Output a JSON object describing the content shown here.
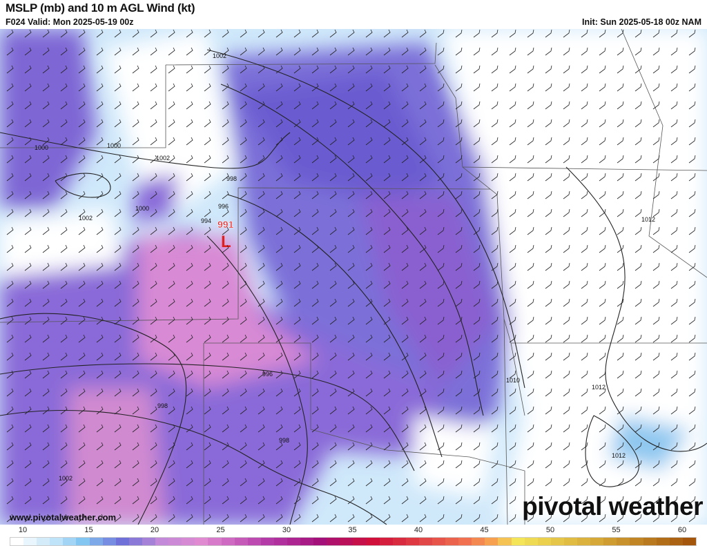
{
  "header": {
    "title": "MSLP (mb) and 10 m AGL Wind (kt)",
    "valid": "F024 Valid: Mon 2025-05-19 00z",
    "init": "Init: Sun 2025-05-18 00z NAM"
  },
  "map": {
    "low_center": {
      "pressure": "991",
      "symbol": "L",
      "color": "#e02020"
    },
    "isobar_labels": [
      "1002",
      "1000",
      "1002",
      "1000",
      "998",
      "996",
      "994",
      "1000",
      "1002",
      "1012",
      "996",
      "998",
      "998",
      "1010",
      "1012",
      "1012",
      "1002"
    ]
  },
  "footer": {
    "website": "www.pivotalweather.com",
    "logo": "pivotal weather"
  },
  "colorbar": {
    "unit": "kt",
    "labels": [
      "10",
      "15",
      "20",
      "25",
      "30",
      "35",
      "40",
      "45",
      "50",
      "55",
      "60"
    ],
    "stops": [
      {
        "value": 10,
        "color": "#ffffff"
      },
      {
        "value": 13,
        "color": "#bfe3f8"
      },
      {
        "value": 15,
        "color": "#84c6f2"
      },
      {
        "value": 18,
        "color": "#6f70d8"
      },
      {
        "value": 21,
        "color": "#c28ad8"
      },
      {
        "value": 24,
        "color": "#e08ad2"
      },
      {
        "value": 29,
        "color": "#b43aa8"
      },
      {
        "value": 33,
        "color": "#a4107a"
      },
      {
        "value": 37,
        "color": "#d0103a"
      },
      {
        "value": 44,
        "color": "#f07050"
      },
      {
        "value": 46,
        "color": "#f6a050"
      },
      {
        "value": 48,
        "color": "#f4e458"
      },
      {
        "value": 54,
        "color": "#d6a838"
      },
      {
        "value": 61,
        "color": "#a4560c"
      }
    ]
  }
}
